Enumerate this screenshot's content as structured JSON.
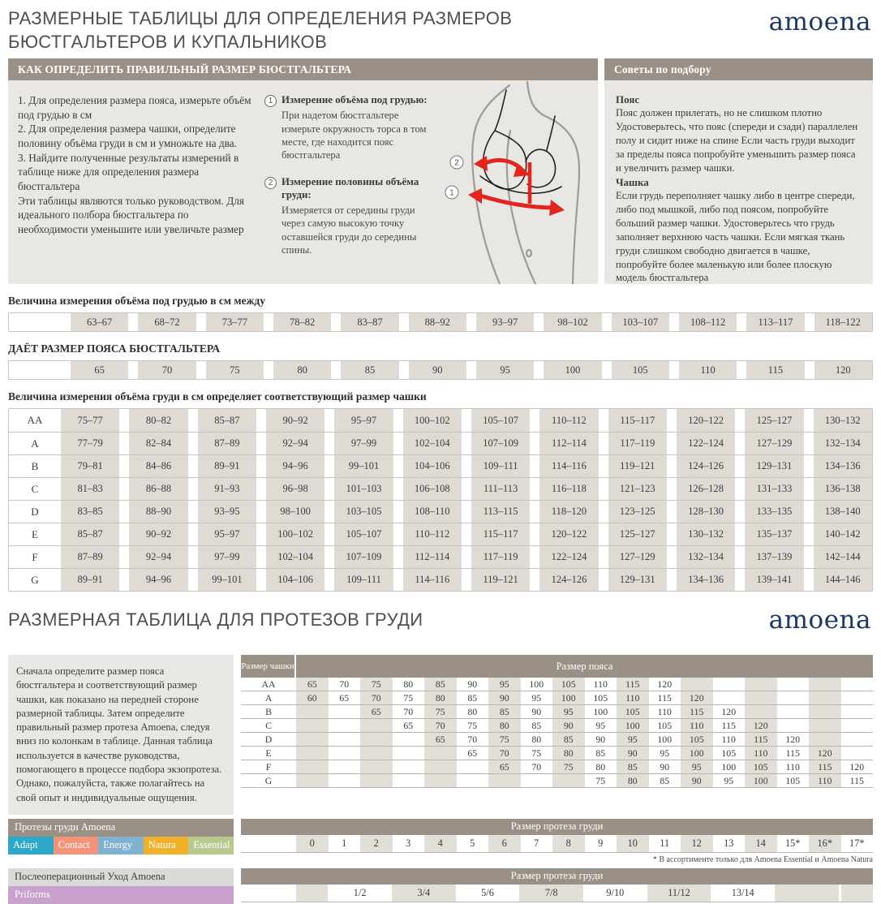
{
  "colors": {
    "taupe": "#9A9086",
    "panel": "#E9E7E3",
    "cell": "#DFDAD4",
    "stripe": "#E2DED8",
    "navy": "#1C3966",
    "red": "#E3251E"
  },
  "page": {
    "title_line1": "РАЗМЕРНЫЕ ТАБЛИЦЫ ДЛЯ ОПРЕДЕЛЕНИЯ РАЗМЕРОВ",
    "title_line2": "БЮСТГАЛЬТЕРОВ И КУПАЛЬНИКОВ",
    "brand": "amoena",
    "section2_title": "РАЗМЕРНАЯ ТАБЛИЦА ДЛЯ ПРОТЕЗОВ ГРУДИ"
  },
  "how_to": {
    "header": "КАК ОПРЕДЕЛИТЬ ПРАВИЛЬНЫЙ РАЗМЕР БЮСТГАЛЬТЕРА",
    "steps": [
      "1. Для определения размера пояса, измерьте объём под грудью в см",
      "2.  Для определения размера чашки, определите половину объёма груди в см и умножьте на два.",
      "3.  Найдите полученные результаты измерений в таблице ниже для определения размера бюстгальтера"
    ],
    "note": "Эти таблицы являются только руководством. Для идеального полбора бюстгальтера по необходимости уменьшите или увеличьте размер",
    "measure1_num": "1",
    "measure1_title": "Измерение объёма под грудью:",
    "measure1_text": "При надетом бюстгальтере измерьте окружность торса в том месте, где находится пояс бюстгальтера",
    "measure2_num": "2",
    "measure2_title": "Измерение половины объёма груди:",
    "measure2_text": "Измеряется от середины груди через самую высокую точку оставшейся груди до середины спины.",
    "illu_mark1": "1",
    "illu_mark2": "2"
  },
  "tips": {
    "header": "Советы по подбору",
    "belt_title": "Пояс",
    "belt_text": "Пояс должен прилегать, но не слишком плотно Удостоверьтесь, что пояс (спереди и сзади) параллелен полу и сидит ниже на спине Если часть груди выходит за пределы пояса попробуйте уменьшить размер пояса и увеличить размер чашки.",
    "cup_title": "Чашка",
    "cup_text": "Если грудь переполняет чашку либо в центре спереди, либо под мышкой, либо под поясом, попробуйте больший размер чашки. Удостоверьтесь что грудь заполняет верхнюю часть чашки. Если мягкая ткань груди слишком свободно двигается в чашке, попробуйте более маленькую или более плоскую модель бюстгальтера"
  },
  "underbust_table": {
    "heading": "Величина измерения объёма под грудью в см между",
    "values": [
      "63–67",
      "68–72",
      "73–77",
      "78–82",
      "83–87",
      "88–92",
      "93–97",
      "98–102",
      "103–107",
      "108–112",
      "113–117",
      "118–122"
    ]
  },
  "band_size_table": {
    "heading": "ДАЁТ РАЗМЕР ПОЯСА БЮСТГАЛЬТЕРА",
    "values": [
      "65",
      "70",
      "75",
      "80",
      "85",
      "90",
      "95",
      "100",
      "105",
      "110",
      "115",
      "120"
    ]
  },
  "cup_table": {
    "heading": "Величина измерения объёма груди в см определяет соответствующий размер чашки",
    "rows": [
      {
        "cup": "AA",
        "values": [
          "75–77",
          "80–82",
          "85–87",
          "90–92",
          "95–97",
          "100–102",
          "105–107",
          "110–112",
          "115–117",
          "120–122",
          "125–127",
          "130–132"
        ]
      },
      {
        "cup": "A",
        "values": [
          "77–79",
          "82–84",
          "87–89",
          "92–94",
          "97–99",
          "102–104",
          "107–109",
          "112–114",
          "117–119",
          "122–124",
          "127–129",
          "132–134"
        ]
      },
      {
        "cup": "B",
        "values": [
          "79–81",
          "84–86",
          "89–91",
          "94–96",
          "99–101",
          "104–106",
          "109–111",
          "114–116",
          "119–121",
          "124–126",
          "129–131",
          "134–136"
        ]
      },
      {
        "cup": "C",
        "values": [
          "81–83",
          "86–88",
          "91–93",
          "96–98",
          "101–103",
          "106–108",
          "111–113",
          "116–118",
          "121–123",
          "126–128",
          "131–133",
          "136–138"
        ]
      },
      {
        "cup": "D",
        "values": [
          "83–85",
          "88–90",
          "93–95",
          "98–100",
          "103–105",
          "108–110",
          "113–115",
          "118–120",
          "123–125",
          "128–130",
          "133–135",
          "138–140"
        ]
      },
      {
        "cup": "E",
        "values": [
          "85–87",
          "90–92",
          "95–97",
          "100–102",
          "105–107",
          "110–112",
          "115–117",
          "120–122",
          "125–127",
          "130–132",
          "135–137",
          "140–142"
        ]
      },
      {
        "cup": "F",
        "values": [
          "87–89",
          "92–94",
          "97–99",
          "102–104",
          "107–109",
          "112–114",
          "117–119",
          "122–124",
          "127–129",
          "132–134",
          "137–139",
          "142–144"
        ]
      },
      {
        "cup": "G",
        "values": [
          "89–91",
          "94–96",
          "99–101",
          "104–106",
          "109–111",
          "114–116",
          "119–121",
          "124–126",
          "129–131",
          "134–136",
          "139–141",
          "144–146"
        ]
      }
    ]
  },
  "prosthesis_section": {
    "intro": "Сначала определите размер пояса бюстгальтера и соответствующий размер чашки, как показано на передней стороне размерной таблицы. Затем определите правильный размер протеза Amoena, следуя вниз по колонкам в таблице. Данная таблица используется в качестве руководства, помогающего в процессе подбора экзопротеза. Однако, пожалуйста, также полагайтесь на свой опыт и индивидуальные ощущения.",
    "table": {
      "cup_header": "Размер чашки",
      "band_header": "Размер пояса",
      "rows": [
        {
          "cup": "AA",
          "cells": [
            "65",
            "70",
            "75",
            "80",
            "85",
            "90",
            "95",
            "100",
            "105",
            "110",
            "115",
            "120",
            "",
            "",
            "",
            "",
            "",
            ""
          ]
        },
        {
          "cup": "A",
          "cells": [
            "60",
            "65",
            "70",
            "75",
            "80",
            "85",
            "90",
            "95",
            "100",
            "105",
            "110",
            "115",
            "120",
            "",
            "",
            "",
            "",
            ""
          ]
        },
        {
          "cup": "B",
          "cells": [
            "",
            "",
            "65",
            "70",
            "75",
            "80",
            "85",
            "90",
            "95",
            "100",
            "105",
            "110",
            "115",
            "120",
            "",
            "",
            "",
            ""
          ]
        },
        {
          "cup": "C",
          "cells": [
            "",
            "",
            "",
            "65",
            "70",
            "75",
            "80",
            "85",
            "90",
            "95",
            "100",
            "105",
            "110",
            "115",
            "120",
            "",
            "",
            ""
          ]
        },
        {
          "cup": "D",
          "cells": [
            "",
            "",
            "",
            "",
            "65",
            "70",
            "75",
            "80",
            "85",
            "90",
            "95",
            "100",
            "105",
            "110",
            "115",
            "120",
            "",
            ""
          ]
        },
        {
          "cup": "E",
          "cells": [
            "",
            "",
            "",
            "",
            "",
            "65",
            "70",
            "75",
            "80",
            "85",
            "90",
            "95",
            "100",
            "105",
            "110",
            "115",
            "120",
            ""
          ]
        },
        {
          "cup": "F",
          "cells": [
            "",
            "",
            "",
            "",
            "",
            "",
            "65",
            "70",
            "75",
            "80",
            "85",
            "90",
            "95",
            "100",
            "105",
            "110",
            "115",
            "120"
          ]
        },
        {
          "cup": "G",
          "cells": [
            "",
            "",
            "",
            "",
            "",
            "",
            "",
            "",
            "",
            "75",
            "80",
            "85",
            "90",
            "95",
            "100",
            "105",
            "110",
            "115"
          ]
        }
      ]
    },
    "size_table1": {
      "header": "Размер протеза груди",
      "values": [
        "0",
        "1",
        "2",
        "3",
        "4",
        "5",
        "6",
        "7",
        "8",
        "9",
        "10",
        "11",
        "12",
        "13",
        "14",
        "15*",
        "16*",
        "17*"
      ],
      "footnote": "* В ассортименте только для  Amoena Essential и Amoena Natura"
    },
    "size_table2": {
      "header": "Размер протеза груди",
      "cells": [
        {
          "v": "",
          "span": 1,
          "shaded": true
        },
        {
          "v": "1/2",
          "span": 2,
          "shaded": false
        },
        {
          "v": "3/4",
          "span": 2,
          "shaded": true
        },
        {
          "v": "5/6",
          "span": 2,
          "shaded": false
        },
        {
          "v": "7/8",
          "span": 2,
          "shaded": true
        },
        {
          "v": "9/10",
          "span": 2,
          "shaded": false
        },
        {
          "v": "11/12",
          "span": 2,
          "shaded": true
        },
        {
          "v": "13/14",
          "span": 2,
          "shaded": false
        },
        {
          "v": "",
          "span": 2,
          "shaded": true
        },
        {
          "v": "",
          "span": 1,
          "shaded": true,
          "gap": true
        }
      ]
    },
    "lines_header": "Протезы груди Amoena",
    "badges": [
      {
        "label": "Adapt",
        "color": "#2CA9C9"
      },
      {
        "label": "Contact",
        "color": "#F2937A"
      },
      {
        "label": "Energy",
        "color": "#7EB2CE"
      },
      {
        "label": "Natura",
        "color": "#F0B12A"
      },
      {
        "label": "Essential",
        "color": "#B9C98E"
      }
    ],
    "postop_header": "Послеоперационный Уход Amoena",
    "postop_badge": "Priforms",
    "postop_badge_color": "#C8A2CC"
  }
}
